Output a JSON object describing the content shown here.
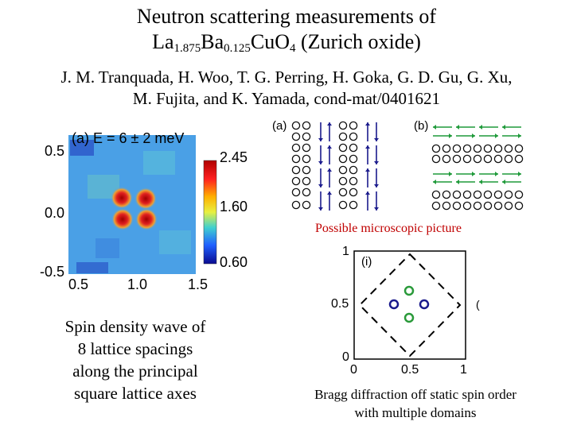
{
  "slide": {
    "title_line1": "Neutron scattering measurements of",
    "formula": {
      "el1": "La",
      "sub1": "1.875",
      "el2": "Ba",
      "sub2": "0.125",
      "el3": "Cu",
      "el4": "O",
      "sub4": "4",
      "tail": " (Zurich oxide)"
    },
    "authors_line1": "J. M. Tranquada, H. Woo, T. G. Perring, H. Goka, G. D. Gu, G. Xu,",
    "authors_line2": "M. Fujita, and K. Yamada, cond-mat/0401621"
  },
  "heatmap": {
    "panel_label": "(a) E = 6 ± 2 meV",
    "y_ticks": [
      "0.5",
      "0.0",
      "-0.5"
    ],
    "x_ticks": [
      "0.5",
      "1.0",
      "1.5"
    ],
    "colorbar_ticks": [
      "2.45",
      "1.60",
      "0.60"
    ],
    "colors": {
      "background": "#4aa0e6",
      "peak": "#c01010"
    }
  },
  "spin_diagram": {
    "label_a": "(a)",
    "label_b": "(b)",
    "caption": "Possible microscopic picture",
    "colors": {
      "arrow_a": "#1a1a8c",
      "arrow_b": "#1f9a3a"
    }
  },
  "bragg_plot": {
    "panel_label": "(i)",
    "y_ticks": [
      "1",
      "0.5",
      "0"
    ],
    "x_ticks": [
      "0",
      "0.5",
      "1"
    ],
    "colors": {
      "green": "#2a9a3a",
      "blue": "#1a1a8c"
    },
    "caption_line1": "Bragg diffraction off static spin order",
    "caption_line2": "with multiple domains"
  },
  "left_caption": {
    "line1": "Spin density wave of",
    "line2": "8 lattice spacings",
    "line3": "along the principal",
    "line4": "square lattice axes"
  }
}
